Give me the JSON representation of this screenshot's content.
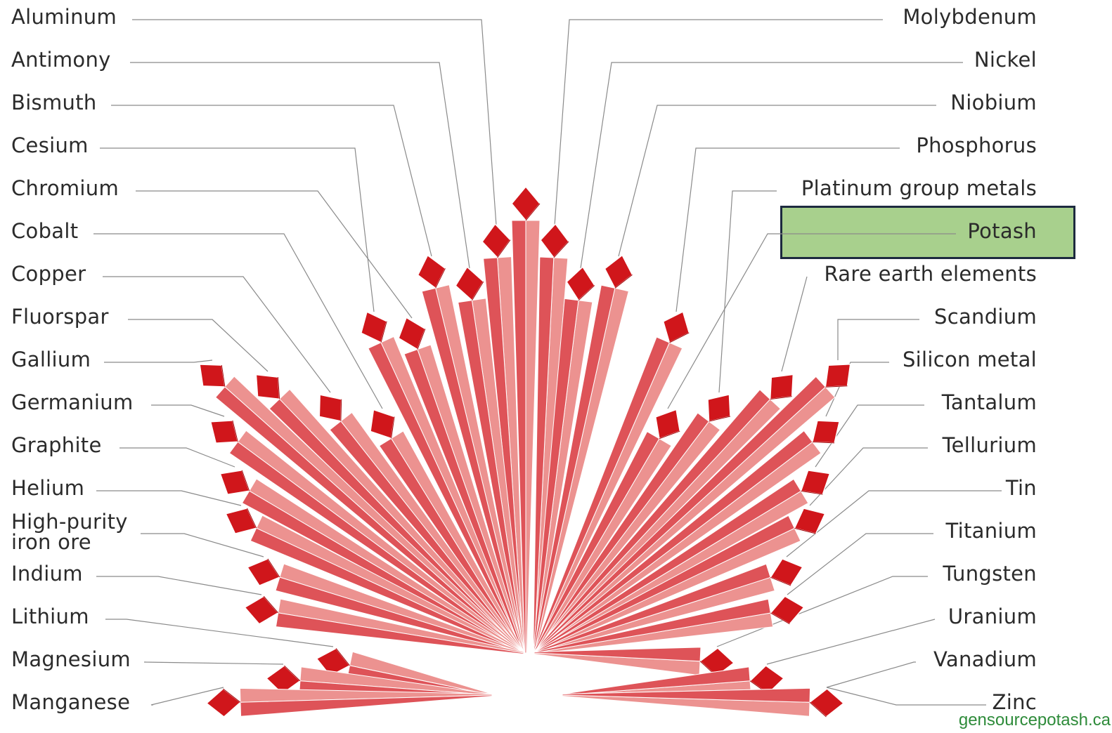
{
  "left_minerals": [
    "Aluminum",
    "Antimony",
    "Bismuth",
    "Cesium",
    "Chromium",
    "Cobalt",
    "Copper",
    "Fluorspar",
    "Gallium",
    "Germanium",
    "Graphite",
    "Helium",
    "High-purity iron ore",
    "Indium",
    "Lithium",
    "Magnesium",
    "Manganese"
  ],
  "right_minerals": [
    "Molybdenum",
    "Nickel",
    "Niobium",
    "Phosphorus",
    "Platinum group metals",
    "Potash",
    "Rare earth elements",
    "Scandium",
    "Silicon metal",
    "Tantalum",
    "Tellurium",
    "Tin",
    "Titanium",
    "Tungsten",
    "Uranium",
    "Vanadium",
    "Zinc"
  ],
  "highlighted": "Potash",
  "credit": "gensourcepotash.ca",
  "colors": {
    "tip": "#d0161b",
    "ray_light": "#ec9290",
    "ray_dark": "#de5358",
    "highlight": "#a8d08d",
    "highlight_border": "#1d2a3f",
    "leader": "#8a8a8a",
    "credit": "#2e8b3a"
  }
}
